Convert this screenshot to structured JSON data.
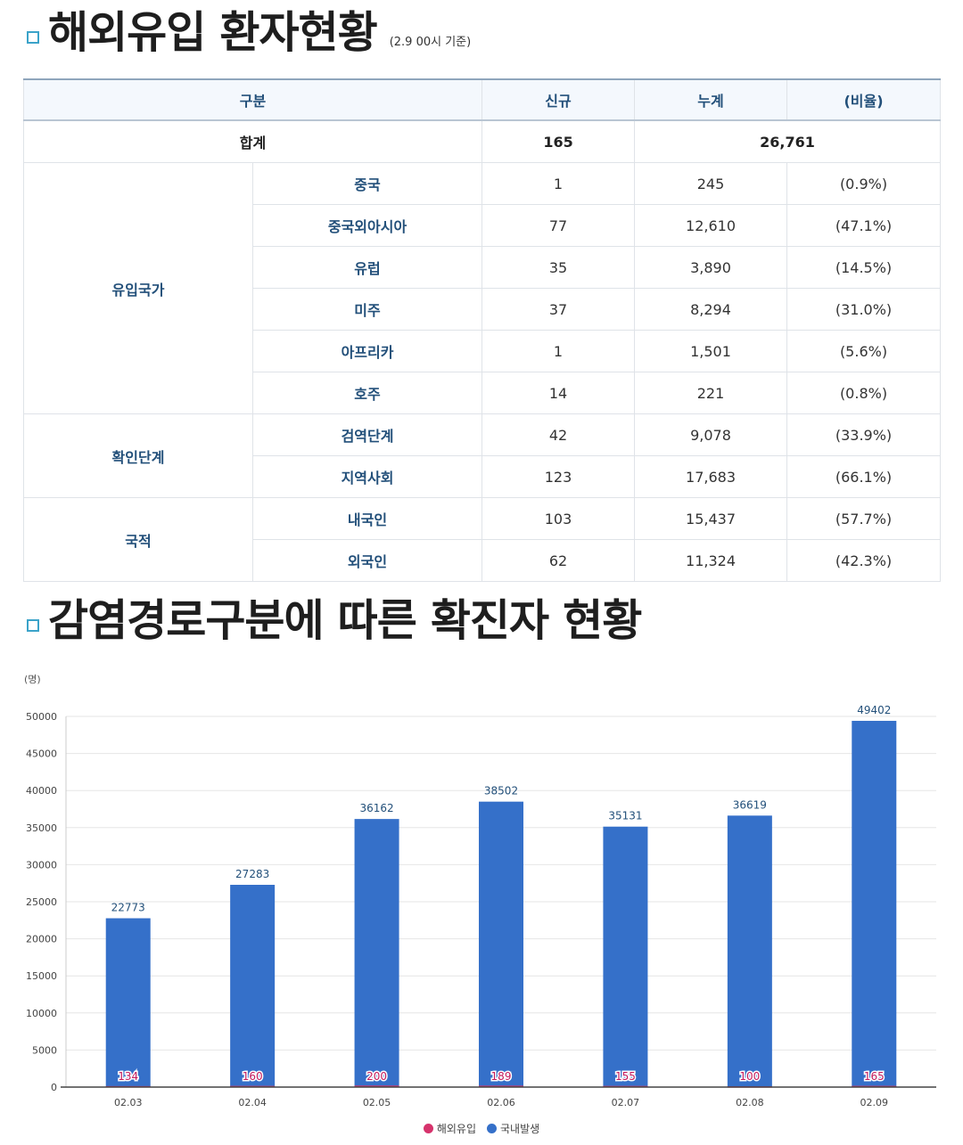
{
  "section1": {
    "title": "해외유입 환자현황",
    "note": "(2.9 00시 기준)"
  },
  "table": {
    "headers": [
      "구분",
      "신규",
      "누계",
      "(비율)"
    ],
    "total": {
      "label": "합계",
      "new": "165",
      "cumulative": "26,761"
    },
    "groups": [
      {
        "category": "유입국가",
        "rows": [
          {
            "label": "중국",
            "new": "1",
            "cumulative": "245",
            "ratio": "(0.9%)"
          },
          {
            "label": "중국외아시아",
            "new": "77",
            "cumulative": "12,610",
            "ratio": "(47.1%)"
          },
          {
            "label": "유럽",
            "new": "35",
            "cumulative": "3,890",
            "ratio": "(14.5%)"
          },
          {
            "label": "미주",
            "new": "37",
            "cumulative": "8,294",
            "ratio": "(31.0%)"
          },
          {
            "label": "아프리카",
            "new": "1",
            "cumulative": "1,501",
            "ratio": "(5.6%)"
          },
          {
            "label": "호주",
            "new": "14",
            "cumulative": "221",
            "ratio": "(0.8%)"
          }
        ]
      },
      {
        "category": "확인단계",
        "rows": [
          {
            "label": "검역단계",
            "new": "42",
            "cumulative": "9,078",
            "ratio": "(33.9%)"
          },
          {
            "label": "지역사회",
            "new": "123",
            "cumulative": "17,683",
            "ratio": "(66.1%)"
          }
        ]
      },
      {
        "category": "국적",
        "rows": [
          {
            "label": "내국인",
            "new": "103",
            "cumulative": "15,437",
            "ratio": "(57.7%)"
          },
          {
            "label": "외국인",
            "new": "62",
            "cumulative": "11,324",
            "ratio": "(42.3%)"
          }
        ]
      }
    ]
  },
  "section2": {
    "title": "감염경로구분에 따른 확진자 현황"
  },
  "chart_data": {
    "type": "bar",
    "unit_label": "(명)",
    "categories": [
      "02.03",
      "02.04",
      "02.05",
      "02.06",
      "02.07",
      "02.08",
      "02.09"
    ],
    "series": [
      {
        "name": "해외유입",
        "values": [
          134,
          160,
          200,
          189,
          155,
          100,
          165
        ],
        "color": "#d6336c"
      },
      {
        "name": "국내발생",
        "values": [
          22773,
          27283,
          36162,
          38502,
          35131,
          36619,
          49402
        ],
        "color": "#3570c9"
      }
    ],
    "ylim": [
      0,
      50000
    ],
    "yticks": [
      0,
      5000,
      10000,
      15000,
      20000,
      25000,
      30000,
      35000,
      40000,
      45000,
      50000
    ],
    "grid": true,
    "legend": "bottom"
  }
}
